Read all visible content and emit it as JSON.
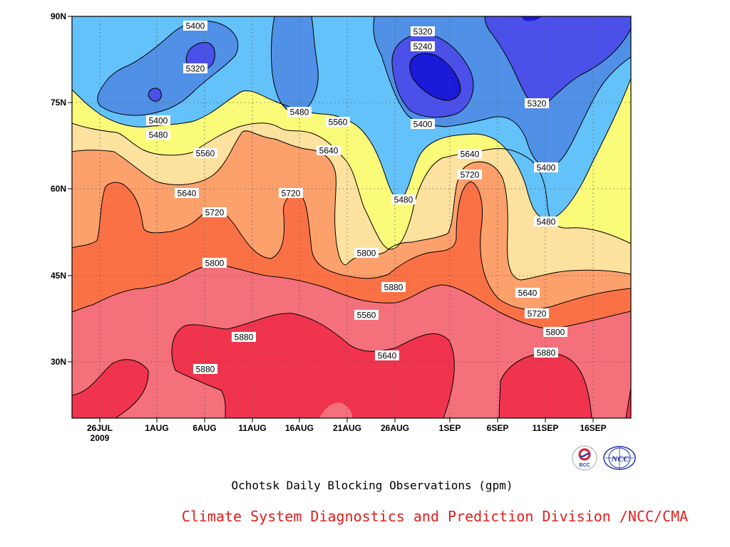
{
  "chart_data": {
    "type": "heatmap",
    "title": "Ochotsk Daily Blocking Observations (gpm)",
    "credit": "Climate System Diagnostics and Prediction Division /NCC/CMA",
    "logos": [
      "BCC",
      "NCC"
    ],
    "y_ticks": [
      "90N",
      "75N",
      "60N",
      "45N",
      "30N"
    ],
    "x_ticks": [
      "26JUL",
      "1AUG",
      "6AUG",
      "11AUG",
      "16AUG",
      "21AUG",
      "26AUG",
      "1SEP",
      "6SEP",
      "11SEP",
      "16SEP"
    ],
    "x_year": "2009",
    "contour_levels": [
      5240,
      5320,
      5400,
      5480,
      5560,
      5640,
      5720,
      5800,
      5880
    ],
    "level_colors": [
      "#1a1ad8",
      "#4a50e8",
      "#5090e6",
      "#64c2fa",
      "#fbfb7a",
      "#fde19f",
      "#fca06c",
      "#fb7146",
      "#f4707a",
      "#f0344e"
    ],
    "contour_labels": [
      {
        "text": "5400"
      },
      {
        "text": "5320"
      },
      {
        "text": "5400"
      },
      {
        "text": "5480"
      },
      {
        "text": "5560"
      },
      {
        "text": "5640"
      },
      {
        "text": "5720"
      },
      {
        "text": "5800"
      },
      {
        "text": "5880"
      },
      {
        "text": "5880"
      },
      {
        "text": "5480"
      },
      {
        "text": "5560"
      },
      {
        "text": "5640"
      },
      {
        "text": "5720"
      },
      {
        "text": "5320"
      },
      {
        "text": "5240"
      },
      {
        "text": "5400"
      },
      {
        "text": "5480"
      },
      {
        "text": "5640"
      },
      {
        "text": "5720"
      },
      {
        "text": "5800"
      },
      {
        "text": "5880"
      },
      {
        "text": "5560"
      },
      {
        "text": "5640"
      },
      {
        "text": "5320"
      },
      {
        "text": "5400"
      },
      {
        "text": "5480"
      },
      {
        "text": "5640"
      },
      {
        "text": "5720"
      },
      {
        "text": "5800"
      },
      {
        "text": "5880"
      }
    ]
  }
}
